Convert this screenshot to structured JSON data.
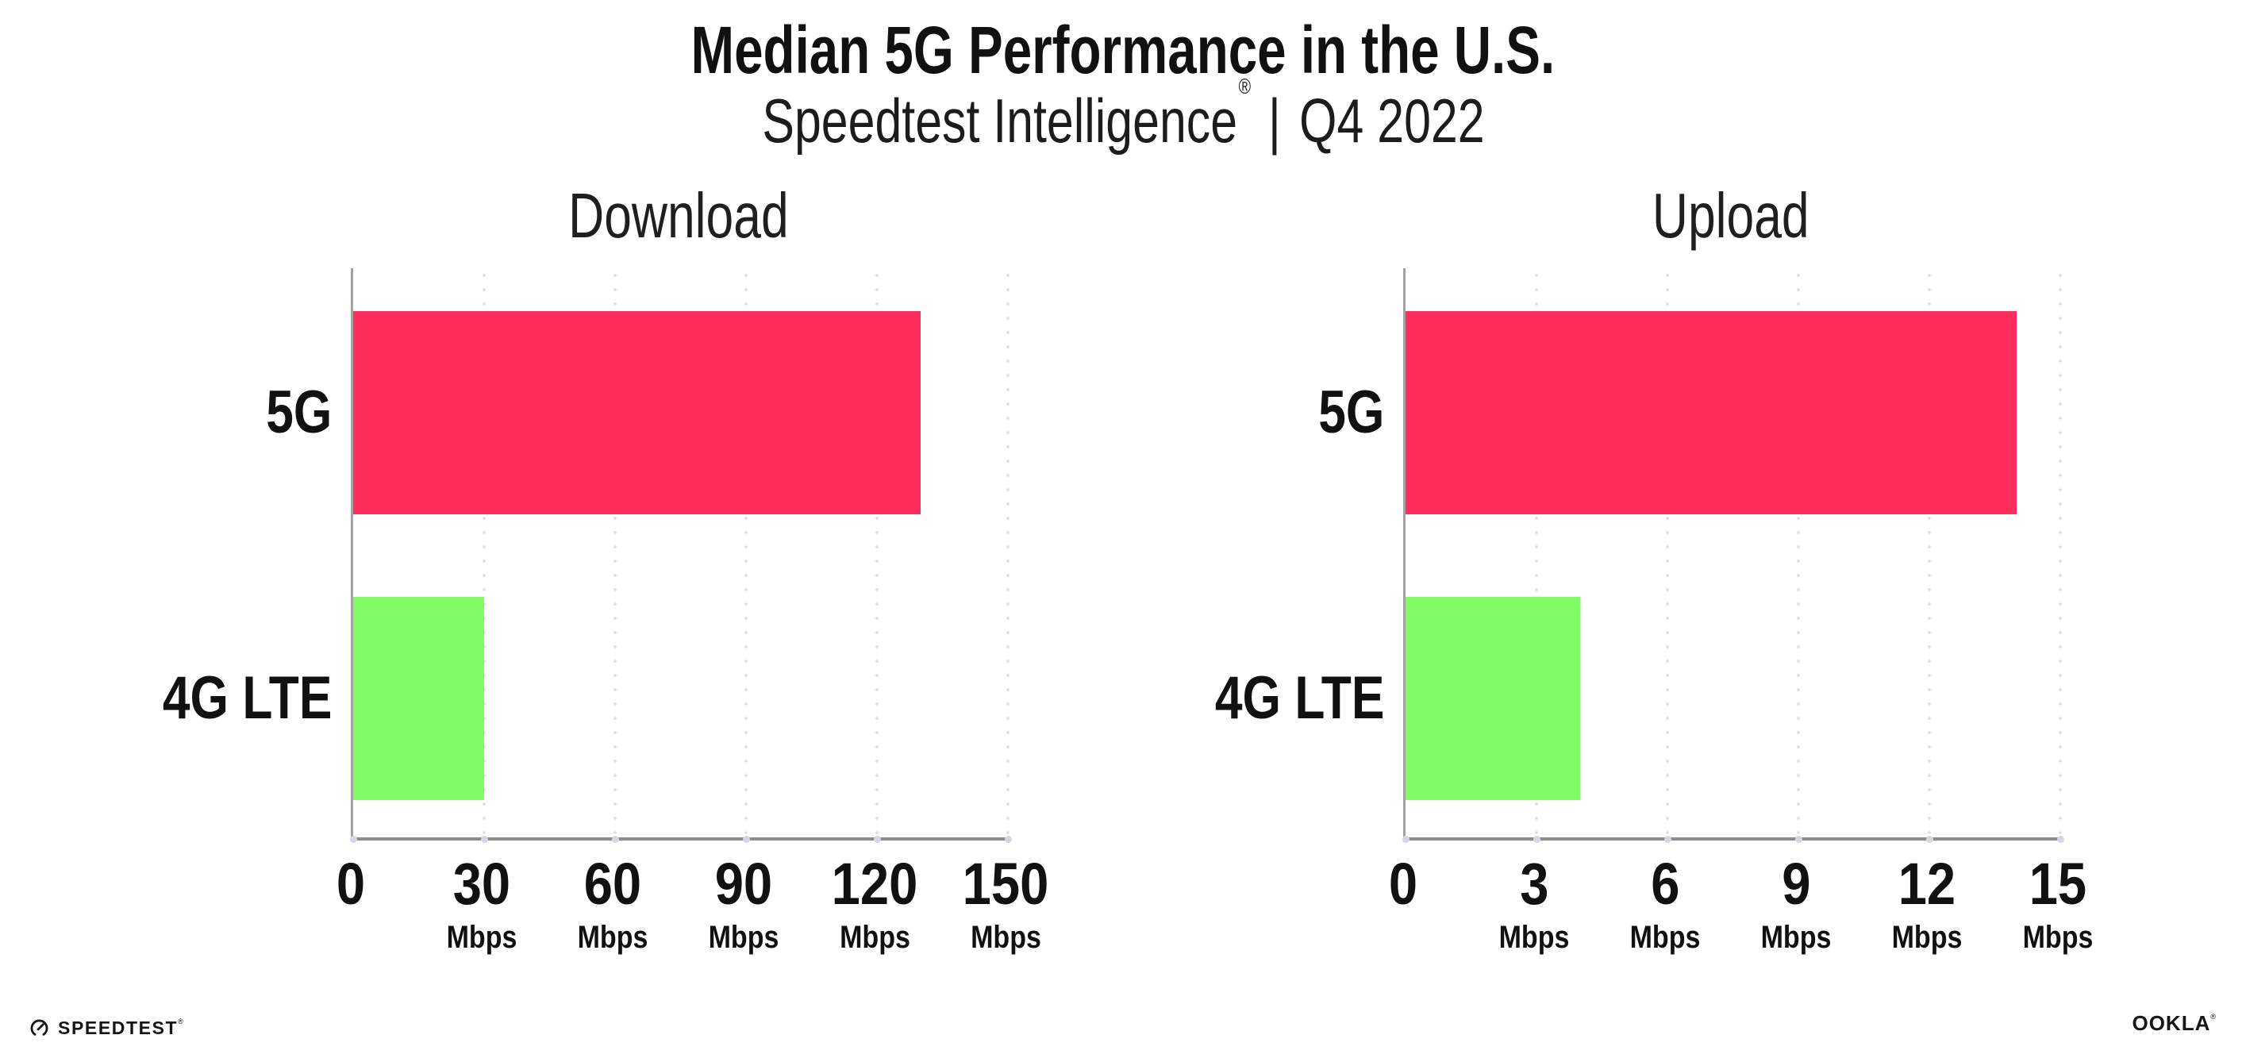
{
  "header": {
    "title": "Median 5G Performance in the U.S.",
    "subtitle": {
      "brand": "Speedtest Intelligence",
      "registered_mark": "®",
      "separator": "|",
      "period": "Q4 2022"
    }
  },
  "chart_data": [
    {
      "type": "bar",
      "orientation": "horizontal",
      "panel": "left",
      "title": "Download",
      "categories": [
        "5G",
        "4G LTE"
      ],
      "values": [
        130,
        30
      ],
      "value_unit": "Mbps",
      "xlim": [
        0,
        150
      ],
      "xticks": [
        0,
        30,
        60,
        90,
        120,
        150
      ],
      "xtick_unit_label": "Mbps",
      "bar_colors": [
        "#ff2d5c",
        "#80fc66"
      ],
      "grid": "vertical-dotted",
      "legend_position": "none"
    },
    {
      "type": "bar",
      "orientation": "horizontal",
      "panel": "right",
      "title": "Upload",
      "categories": [
        "5G",
        "4G LTE"
      ],
      "values": [
        14,
        4
      ],
      "value_unit": "Mbps",
      "xlim": [
        0,
        15
      ],
      "xticks": [
        0,
        3,
        6,
        9,
        12,
        15
      ],
      "xtick_unit_label": "Mbps",
      "bar_colors": [
        "#ff2d5c",
        "#80fc66"
      ],
      "grid": "vertical-dotted",
      "legend_position": "none"
    }
  ],
  "footer": {
    "speedtest_logo": {
      "text": "SPEEDTEST",
      "mark": "®"
    },
    "ookla_logo": {
      "text": "OOKLA",
      "mark": "®"
    }
  },
  "colors": {
    "bar_5g": "#ff2d5c",
    "bar_4g_lte": "#80fc66",
    "axis": "#8c8c8c",
    "gridline_dots": "#dcdce8",
    "text": "#111111",
    "background": "#ffffff"
  }
}
